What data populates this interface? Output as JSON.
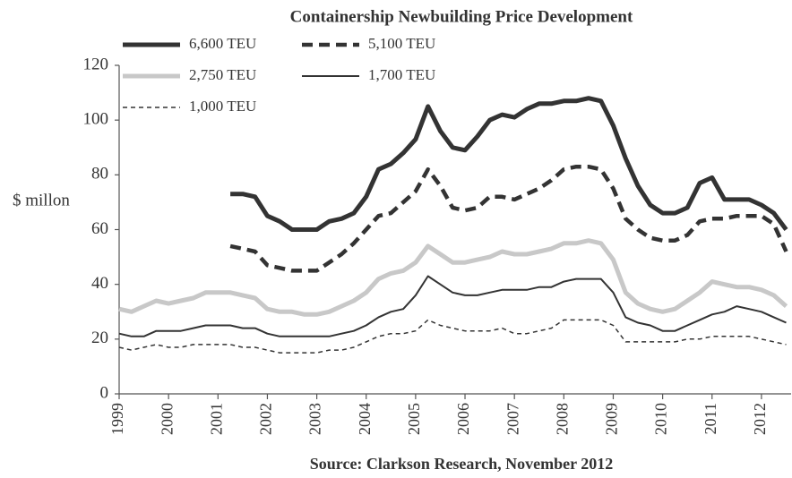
{
  "chart_data": {
    "type": "line",
    "title": "Containership Newbuilding Price Development",
    "y_label": "$ millon",
    "source": "Source: Clarkson Research, November 2012",
    "x": [
      1999,
      1999.25,
      1999.5,
      1999.75,
      2000,
      2000.25,
      2000.5,
      2000.75,
      2001,
      2001.25,
      2001.5,
      2001.75,
      2002,
      2002.25,
      2002.5,
      2002.75,
      2003,
      2003.25,
      2003.5,
      2003.75,
      2004,
      2004.25,
      2004.5,
      2004.75,
      2005,
      2005.25,
      2005.5,
      2005.75,
      2006,
      2006.25,
      2006.5,
      2006.75,
      2007,
      2007.25,
      2007.5,
      2007.75,
      2008,
      2008.25,
      2008.5,
      2008.75,
      2009,
      2009.25,
      2009.5,
      2009.75,
      2010,
      2010.25,
      2010.5,
      2010.75,
      2011,
      2011.25,
      2011.5,
      2011.75,
      2012,
      2012.25,
      2012.5
    ],
    "series": [
      {
        "name": "6,600 TEU",
        "color": "#333333",
        "line_width": 5,
        "dash": false,
        "values": [
          null,
          null,
          null,
          null,
          null,
          null,
          null,
          null,
          null,
          73,
          73,
          72,
          65,
          63,
          60,
          60,
          60,
          63,
          64,
          66,
          72,
          82,
          84,
          88,
          93,
          105,
          96,
          90,
          89,
          94,
          100,
          102,
          101,
          104,
          106,
          106,
          107,
          107,
          108,
          107,
          98,
          86,
          76,
          69,
          66,
          66,
          68,
          77,
          79,
          71,
          71,
          71,
          69,
          66,
          60
        ]
      },
      {
        "name": "5,100 TEU",
        "color": "#333333",
        "line_width": 4.5,
        "dash": true,
        "values": [
          null,
          null,
          null,
          null,
          null,
          null,
          null,
          null,
          null,
          54,
          53,
          52,
          47,
          46,
          45,
          45,
          45,
          48,
          51,
          55,
          60,
          65,
          66,
          70,
          74,
          82,
          76,
          68,
          67,
          68,
          72,
          72,
          71,
          73,
          75,
          78,
          82,
          83,
          83,
          82,
          75,
          64,
          60,
          57,
          56,
          56,
          58,
          63,
          64,
          64,
          65,
          65,
          65,
          62,
          52
        ]
      },
      {
        "name": "2,750 TEU",
        "color": "#c8c8c8",
        "line_width": 5,
        "dash": false,
        "values": [
          31,
          30,
          32,
          34,
          33,
          34,
          35,
          37,
          37,
          37,
          36,
          35,
          31,
          30,
          30,
          29,
          29,
          30,
          32,
          34,
          37,
          42,
          44,
          45,
          48,
          54,
          51,
          48,
          48,
          49,
          50,
          52,
          51,
          51,
          52,
          53,
          55,
          55,
          56,
          55,
          49,
          37,
          33,
          31,
          30,
          31,
          34,
          37,
          41,
          40,
          39,
          39,
          38,
          36,
          32
        ]
      },
      {
        "name": "1,700 TEU",
        "color": "#333333",
        "line_width": 2,
        "dash": false,
        "values": [
          22,
          21,
          21,
          23,
          23,
          23,
          24,
          25,
          25,
          25,
          24,
          24,
          22,
          21,
          21,
          21,
          21,
          21,
          22,
          23,
          25,
          28,
          30,
          31,
          36,
          43,
          40,
          37,
          36,
          36,
          37,
          38,
          38,
          38,
          39,
          39,
          41,
          42,
          42,
          42,
          37,
          28,
          26,
          25,
          23,
          23,
          25,
          27,
          29,
          30,
          32,
          31,
          30,
          28,
          26
        ]
      },
      {
        "name": "1,000 TEU",
        "color": "#333333",
        "line_width": 1.5,
        "dash": true,
        "values": [
          17,
          16,
          17,
          18,
          17,
          17,
          18,
          18,
          18,
          18,
          17,
          17,
          16,
          15,
          15,
          15,
          15,
          16,
          16,
          17,
          19,
          21,
          22,
          22,
          23,
          27,
          25,
          24,
          23,
          23,
          23,
          24,
          22,
          22,
          23,
          24,
          27,
          27,
          27,
          27,
          25,
          19,
          19,
          19,
          19,
          19,
          20,
          20,
          21,
          21,
          21,
          21,
          20,
          19,
          18
        ]
      }
    ],
    "xlim": [
      1999,
      2012.6
    ],
    "xticks": [
      1999,
      2000,
      2001,
      2002,
      2003,
      2004,
      2005,
      2006,
      2007,
      2008,
      2009,
      2010,
      2011,
      2012
    ],
    "ylim": [
      0,
      120
    ],
    "yticks": [
      0,
      20,
      40,
      60,
      80,
      100,
      120
    ],
    "grid": false
  }
}
